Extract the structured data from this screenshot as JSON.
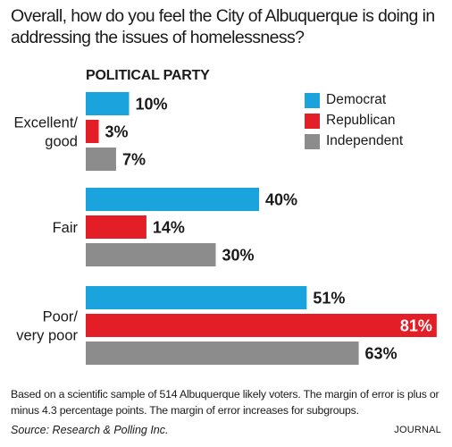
{
  "chart_data": {
    "type": "bar",
    "orientation": "horizontal",
    "title": "Overall, how do you feel the City of Albuquerque is doing in addressing the issues of homelessness?",
    "subtitle": "POLITICAL PARTY",
    "categories": [
      "Excellent/ good",
      "Fair",
      "Poor/ very poor"
    ],
    "category_lines": [
      [
        "Excellent/",
        "good"
      ],
      [
        "Fair"
      ],
      [
        "Poor/",
        "very poor"
      ]
    ],
    "series": [
      {
        "name": "Democrat",
        "color": "#1aa3dc",
        "values": [
          10,
          40,
          51
        ]
      },
      {
        "name": "Republican",
        "color": "#e41e26",
        "values": [
          3,
          14,
          81
        ]
      },
      {
        "name": "Independent",
        "color": "#8c8c8c",
        "values": [
          7,
          30,
          63
        ]
      }
    ],
    "value_suffix": "%",
    "xlim": [
      0,
      100
    ],
    "grid": false,
    "legend_position": "top-right",
    "data_labels": true
  },
  "footnote": "Based on a scientific sample of 514  Albuquerque likely voters. The margin of error is plus or minus 4.3 percentage points. The margin of error increases for subgroups.",
  "source": "Source: Research & Polling Inc.",
  "credit": "JOURNAL"
}
